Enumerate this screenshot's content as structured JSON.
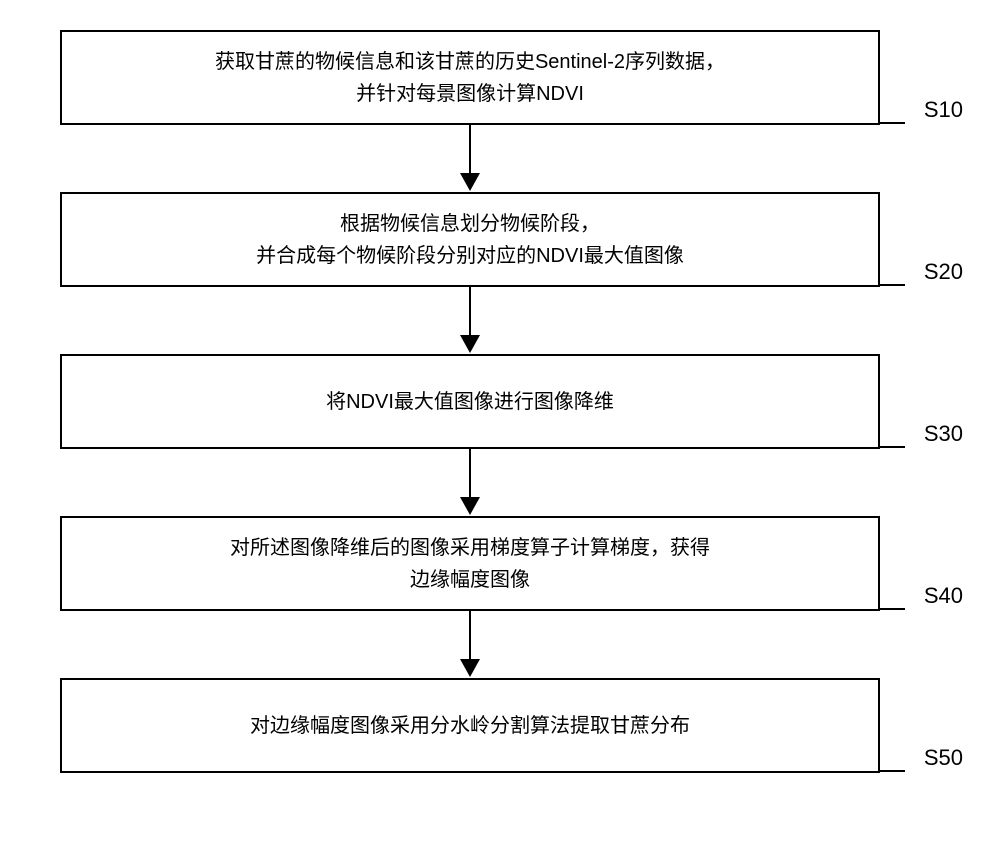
{
  "flowchart": {
    "type": "flowchart",
    "background_color": "#ffffff",
    "box_border_color": "#000000",
    "box_border_width": 2,
    "text_color": "#000000",
    "font_size": 20,
    "label_font_size": 22,
    "arrow_color": "#000000",
    "steps": [
      {
        "id": "s10",
        "label": "S10",
        "line1": "获取甘蔗的物候信息和该甘蔗的历史Sentinel-2序列数据，",
        "line2": "并针对每景图像计算NDVI"
      },
      {
        "id": "s20",
        "label": "S20",
        "line1": "根据物候信息划分物候阶段，",
        "line2": "并合成每个物候阶段分别对应的NDVI最大值图像"
      },
      {
        "id": "s30",
        "label": "S30",
        "line1": "将NDVI最大值图像进行图像降维",
        "line2": ""
      },
      {
        "id": "s40",
        "label": "S40",
        "line1": "对所述图像降维后的图像采用梯度算子计算梯度，获得",
        "line2": "边缘幅度图像"
      },
      {
        "id": "s50",
        "label": "S50",
        "line1": "对边缘幅度图像采用分水岭分割算法提取甘蔗分布",
        "line2": ""
      }
    ]
  }
}
